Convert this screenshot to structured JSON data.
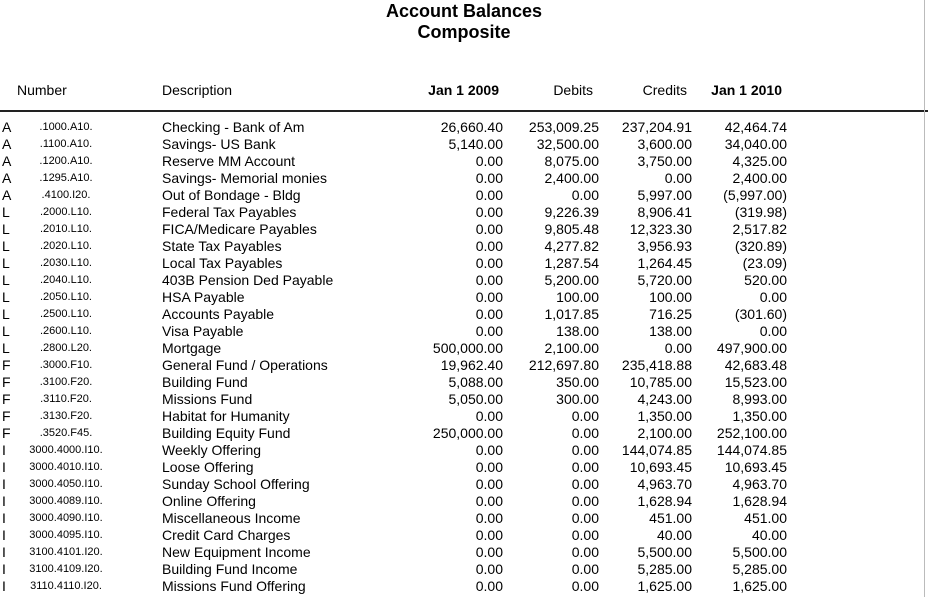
{
  "report": {
    "title": "Account Balances",
    "subtitle": "Composite"
  },
  "columns": {
    "number": "Number",
    "description": "Description",
    "begin": "Jan 1 2009",
    "debits": "Debits",
    "credits": "Credits",
    "end": "Jan 1 2010"
  },
  "rows": [
    {
      "type": "A",
      "number": ".1000.A10.",
      "description": "Checking - Bank of Am",
      "begin": "26,660.40",
      "debits": "253,009.25",
      "credits": "237,204.91",
      "end": "42,464.74"
    },
    {
      "type": "A",
      "number": ".1100.A10.",
      "description": "Savings- US Bank",
      "begin": "5,140.00",
      "debits": "32,500.00",
      "credits": "3,600.00",
      "end": "34,040.00"
    },
    {
      "type": "A",
      "number": ".1200.A10.",
      "description": "Reserve MM Account",
      "begin": "0.00",
      "debits": "8,075.00",
      "credits": "3,750.00",
      "end": "4,325.00"
    },
    {
      "type": "A",
      "number": ".1295.A10.",
      "description": "Savings- Memorial monies",
      "begin": "0.00",
      "debits": "2,400.00",
      "credits": "0.00",
      "end": "2,400.00"
    },
    {
      "type": "A",
      "number": ".4100.I20.",
      "description": "Out of Bondage - Bldg",
      "begin": "0.00",
      "debits": "0.00",
      "credits": "5,997.00",
      "end": "(5,997.00)"
    },
    {
      "type": "L",
      "number": ".2000.L10.",
      "description": "Federal Tax Payables",
      "begin": "0.00",
      "debits": "9,226.39",
      "credits": "8,906.41",
      "end": "(319.98)"
    },
    {
      "type": "L",
      "number": ".2010.L10.",
      "description": "FICA/Medicare Payables",
      "begin": "0.00",
      "debits": "9,805.48",
      "credits": "12,323.30",
      "end": "2,517.82"
    },
    {
      "type": "L",
      "number": ".2020.L10.",
      "description": "State Tax Payables",
      "begin": "0.00",
      "debits": "4,277.82",
      "credits": "3,956.93",
      "end": "(320.89)"
    },
    {
      "type": "L",
      "number": ".2030.L10.",
      "description": "Local Tax Payables",
      "begin": "0.00",
      "debits": "1,287.54",
      "credits": "1,264.45",
      "end": "(23.09)"
    },
    {
      "type": "L",
      "number": ".2040.L10.",
      "description": "403B Pension Ded Payable",
      "begin": "0.00",
      "debits": "5,200.00",
      "credits": "5,720.00",
      "end": "520.00"
    },
    {
      "type": "L",
      "number": ".2050.L10.",
      "description": "HSA  Payable",
      "begin": "0.00",
      "debits": "100.00",
      "credits": "100.00",
      "end": "0.00"
    },
    {
      "type": "L",
      "number": ".2500.L10.",
      "description": "Accounts Payable",
      "begin": "0.00",
      "debits": "1,017.85",
      "credits": "716.25",
      "end": "(301.60)"
    },
    {
      "type": "L",
      "number": ".2600.L10.",
      "description": "Visa Payable",
      "begin": "0.00",
      "debits": "138.00",
      "credits": "138.00",
      "end": "0.00"
    },
    {
      "type": "L",
      "number": ".2800.L20.",
      "description": "Mortgage",
      "begin": "500,000.00",
      "debits": "2,100.00",
      "credits": "0.00",
      "end": "497,900.00"
    },
    {
      "type": "F",
      "number": ".3000.F10.",
      "description": "General Fund / Operations",
      "begin": "19,962.40",
      "debits": "212,697.80",
      "credits": "235,418.88",
      "end": "42,683.48"
    },
    {
      "type": "F",
      "number": ".3100.F20.",
      "description": "Building Fund",
      "begin": "5,088.00",
      "debits": "350.00",
      "credits": "10,785.00",
      "end": "15,523.00"
    },
    {
      "type": "F",
      "number": ".3110.F20.",
      "description": "Missions Fund",
      "begin": "5,050.00",
      "debits": "300.00",
      "credits": "4,243.00",
      "end": "8,993.00"
    },
    {
      "type": "F",
      "number": ".3130.F20.",
      "description": "Habitat for Humanity",
      "begin": "0.00",
      "debits": "0.00",
      "credits": "1,350.00",
      "end": "1,350.00"
    },
    {
      "type": "F",
      "number": ".3520.F45.",
      "description": "Building Equity Fund",
      "begin": "250,000.00",
      "debits": "0.00",
      "credits": "2,100.00",
      "end": "252,100.00"
    },
    {
      "type": "I",
      "number": "3000.4000.I10.",
      "description": "Weekly Offering",
      "begin": "0.00",
      "debits": "0.00",
      "credits": "144,074.85",
      "end": "144,074.85"
    },
    {
      "type": "I",
      "number": "3000.4010.I10.",
      "description": "Loose Offering",
      "begin": "0.00",
      "debits": "0.00",
      "credits": "10,693.45",
      "end": "10,693.45"
    },
    {
      "type": "I",
      "number": "3000.4050.I10.",
      "description": "Sunday School Offering",
      "begin": "0.00",
      "debits": "0.00",
      "credits": "4,963.70",
      "end": "4,963.70"
    },
    {
      "type": "I",
      "number": "3000.4089.I10.",
      "description": "Online Offering",
      "begin": "0.00",
      "debits": "0.00",
      "credits": "1,628.94",
      "end": "1,628.94"
    },
    {
      "type": "I",
      "number": "3000.4090.I10.",
      "description": "Miscellaneous Income",
      "begin": "0.00",
      "debits": "0.00",
      "credits": "451.00",
      "end": "451.00"
    },
    {
      "type": "I",
      "number": "3000.4095.I10.",
      "description": "Credit Card Charges",
      "begin": "0.00",
      "debits": "0.00",
      "credits": "40.00",
      "end": "40.00"
    },
    {
      "type": "I",
      "number": "3100.4101.I20.",
      "description": "New Equipment Income",
      "begin": "0.00",
      "debits": "0.00",
      "credits": "5,500.00",
      "end": "5,500.00"
    },
    {
      "type": "I",
      "number": "3100.4109.I20.",
      "description": "Building Fund Income",
      "begin": "0.00",
      "debits": "0.00",
      "credits": "5,285.00",
      "end": "5,285.00"
    },
    {
      "type": "I",
      "number": "3110.4110.I20.",
      "description": "Missions Fund Offering",
      "begin": "0.00",
      "debits": "0.00",
      "credits": "1,625.00",
      "end": "1,625.00"
    }
  ]
}
